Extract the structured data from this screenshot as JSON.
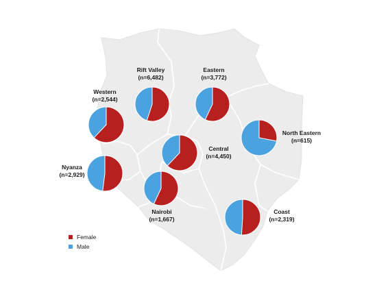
{
  "colors": {
    "female": "#b8201f",
    "male": "#4aa3df",
    "land": "#ececec",
    "border": "#ffffff"
  },
  "legend": [
    {
      "key": "female",
      "label": "Female"
    },
    {
      "key": "male",
      "label": "Male"
    }
  ],
  "regions": [
    {
      "id": "western",
      "name": "Western",
      "n_label": "(n=2,544)",
      "female_share": 0.62
    },
    {
      "id": "rift-valley",
      "name": "Rift Valley",
      "n_label": "(n=6,482)",
      "female_share": 0.55
    },
    {
      "id": "eastern",
      "name": "Eastern",
      "n_label": "(n=3,772)",
      "female_share": 0.57
    },
    {
      "id": "north-eastern",
      "name": "North Eastern",
      "n_label": "(n=615)",
      "female_share": 0.28
    },
    {
      "id": "central",
      "name": "Central",
      "n_label": "(n=4,450)",
      "female_share": 0.62
    },
    {
      "id": "nyanza",
      "name": "Nyanza",
      "n_label": "(n=2,929)",
      "female_share": 0.52
    },
    {
      "id": "nairobi",
      "name": "Nairobi",
      "n_label": "(n=1,667)",
      "female_share": 0.57
    },
    {
      "id": "coast",
      "name": "Coast",
      "n_label": "(n=2,319)",
      "female_share": 0.51
    }
  ]
}
